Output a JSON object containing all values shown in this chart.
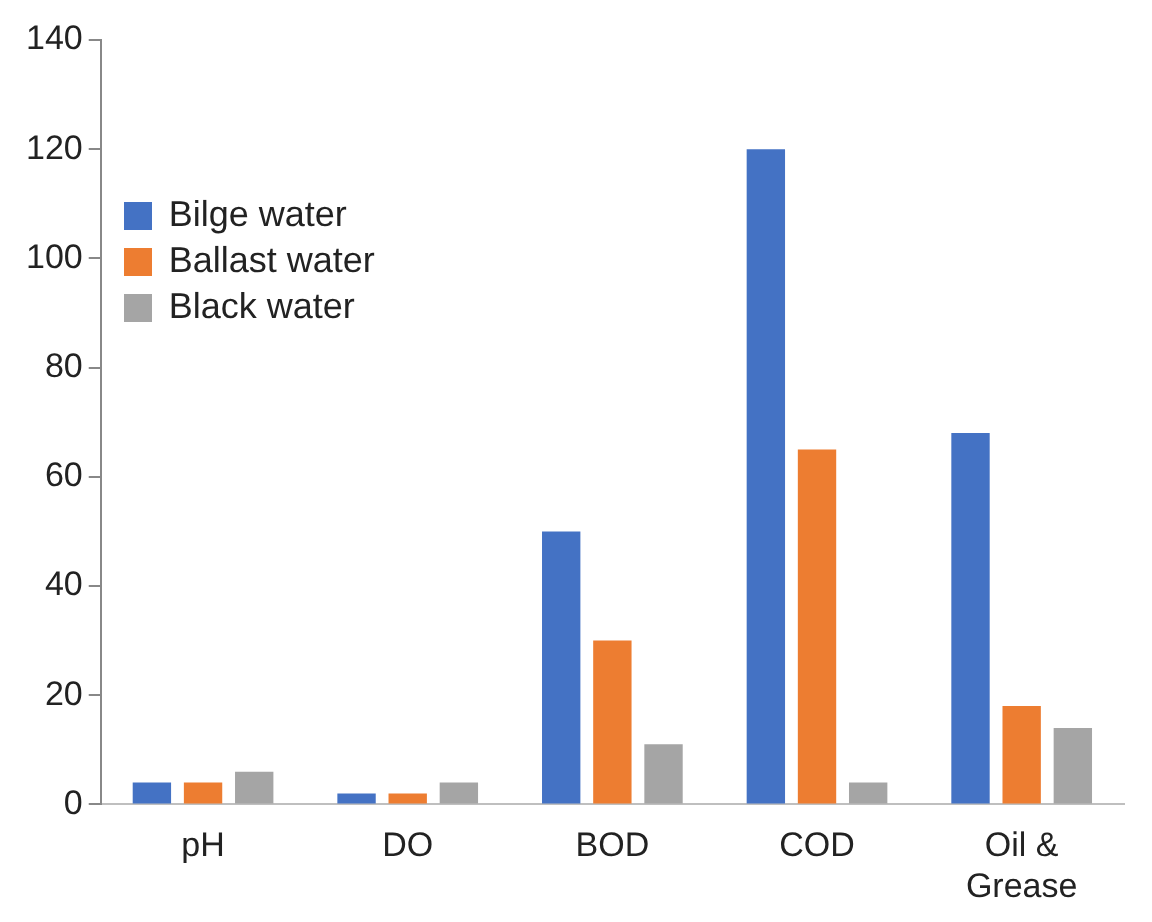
{
  "chart_data": {
    "type": "bar",
    "categories": [
      "pH",
      "DO",
      "BOD",
      "COD",
      "Oil & Grease"
    ],
    "series": [
      {
        "name": "Bilge water",
        "color": "#4472c4",
        "values": [
          4,
          2,
          50,
          120,
          68
        ]
      },
      {
        "name": "Ballast water",
        "color": "#ed7d31",
        "values": [
          4,
          2,
          30,
          65,
          18
        ]
      },
      {
        "name": "Black water",
        "color": "#a5a5a5",
        "values": [
          6,
          4,
          11,
          4,
          14
        ]
      }
    ],
    "ylim": [
      0,
      140
    ],
    "yticks": [
      0,
      20,
      40,
      60,
      80,
      100,
      120,
      140
    ],
    "grid": false,
    "legend": "top left"
  }
}
